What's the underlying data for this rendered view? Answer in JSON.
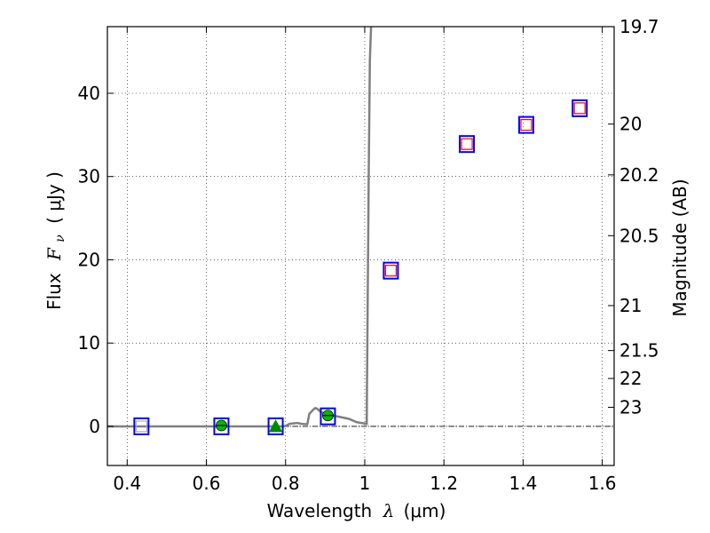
{
  "chart_data": {
    "type": "scatter",
    "title": "",
    "xlabel": "Wavelength  λ (μm)",
    "xlabel_prefix": "Wavelength",
    "xlabel_symbol": "λ",
    "xlabel_unit": "(μm)",
    "ylabel": "Flux  Fν  ( μJy )",
    "ylabel_prefix": "Flux",
    "ylabel_symbol": "F",
    "ylabel_sub": "ν",
    "ylabel_unit": "( μJy )",
    "y2label": "Magnitude (AB)",
    "xlim": [
      0.35,
      1.63
    ],
    "ylim": [
      -4.7,
      48
    ],
    "grid": true,
    "xticks": [
      {
        "value": 0.4,
        "label": "0.4"
      },
      {
        "value": 0.6,
        "label": "0.6"
      },
      {
        "value": 0.8,
        "label": "0.8"
      },
      {
        "value": 1.0,
        "label": "1"
      },
      {
        "value": 1.2,
        "label": "1.2"
      },
      {
        "value": 1.4,
        "label": "1.4"
      },
      {
        "value": 1.6,
        "label": "1.6"
      }
    ],
    "yticks": [
      {
        "value": 0,
        "label": "0"
      },
      {
        "value": 10,
        "label": "10"
      },
      {
        "value": 20,
        "label": "20"
      },
      {
        "value": 30,
        "label": "30"
      },
      {
        "value": 40,
        "label": "40"
      }
    ],
    "y2ticks": [
      {
        "mag": "19.7",
        "flux": 48.0
      },
      {
        "mag": "20",
        "flux": 36.3
      },
      {
        "mag": "20.2",
        "flux": 30.2
      },
      {
        "mag": "20.5",
        "flux": 22.9
      },
      {
        "mag": "21",
        "flux": 14.5
      },
      {
        "mag": "21.5",
        "flux": 9.1
      },
      {
        "mag": "22",
        "flux": 5.75
      },
      {
        "mag": "23",
        "flux": 2.29
      }
    ],
    "series": [
      {
        "kind": "model-line",
        "color": "#808080",
        "points": [
          [
            0.35,
            0.0
          ],
          [
            0.79,
            0.0
          ],
          [
            0.8,
            0.05
          ],
          [
            0.81,
            0.3
          ],
          [
            0.83,
            0.4
          ],
          [
            0.84,
            0.3
          ],
          [
            0.855,
            0.25
          ],
          [
            0.86,
            1.5
          ],
          [
            0.87,
            2.0
          ],
          [
            0.875,
            2.2
          ],
          [
            0.88,
            2.1
          ],
          [
            0.89,
            1.7
          ],
          [
            0.91,
            1.4
          ],
          [
            0.93,
            1.2
          ],
          [
            0.96,
            0.9
          ],
          [
            0.98,
            0.5
          ],
          [
            1.005,
            0.3
          ],
          [
            1.01,
            30
          ],
          [
            1.013,
            44
          ],
          [
            1.016,
            48
          ]
        ]
      },
      {
        "kind": "bandpass-box",
        "color": "#0000ff",
        "points": [
          [
            0.436,
            0.0
          ],
          [
            0.638,
            0.0
          ],
          [
            0.775,
            0.0
          ],
          [
            0.907,
            1.2
          ],
          [
            1.066,
            18.7
          ],
          [
            1.258,
            33.9
          ],
          [
            1.408,
            36.2
          ],
          [
            1.543,
            38.2
          ]
        ]
      },
      {
        "kind": "detection-square",
        "color": "#ff0000",
        "points": [
          [
            1.066,
            18.7
          ],
          [
            1.258,
            33.9
          ],
          [
            1.408,
            36.2
          ],
          [
            1.543,
            38.2
          ]
        ]
      },
      {
        "kind": "upper-square",
        "color": "#aaaaaa",
        "points": [
          [
            0.436,
            0.0
          ]
        ]
      },
      {
        "kind": "circle",
        "color": "#00bb00",
        "points": [
          [
            0.638,
            0.1
          ],
          [
            0.907,
            1.3
          ]
        ]
      },
      {
        "kind": "triangle",
        "color": "#008800",
        "points": [
          [
            0.775,
            0.0
          ]
        ]
      }
    ]
  }
}
